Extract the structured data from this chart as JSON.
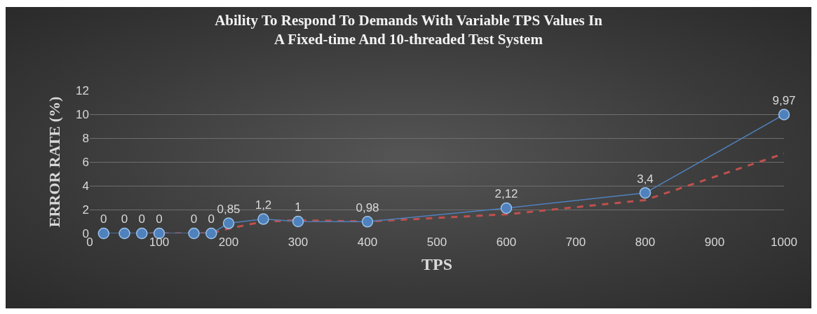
{
  "chart_data": {
    "type": "line",
    "title": "Ability To Respond To Demands With Variable TPS Values In\nA Fixed-time And 10-threaded Test System",
    "xlabel": "TPS",
    "ylabel": "ERROR RATE (%)",
    "x": [
      20,
      50,
      75,
      100,
      150,
      175,
      200,
      250,
      300,
      400,
      600,
      800,
      1000
    ],
    "series": [
      {
        "color": "#4f81bd",
        "marker": "circle",
        "line_style": "solid",
        "values": [
          0,
          0,
          0,
          0,
          0,
          0,
          0.85,
          1.2,
          1,
          0.98,
          2.12,
          3.4,
          9.97
        ],
        "value_labels": [
          "0",
          "0",
          "0",
          "0",
          "0",
          "0",
          "0,85",
          "1,2",
          "1",
          "0,98",
          "2,12",
          "3,4",
          "9,97"
        ]
      },
      {
        "type": "line",
        "color": "#c0504d",
        "marker": "none",
        "line_style": "dashed",
        "x": [
          50,
          75,
          100,
          150,
          175,
          200,
          250,
          300,
          400,
          600,
          800,
          1000
        ],
        "values": [
          0,
          0,
          0,
          0,
          0,
          0.4,
          1.0,
          1.1,
          1.0,
          1.6,
          2.8,
          6.7
        ]
      }
    ],
    "xlim": [
      0,
      1000
    ],
    "xticks": [
      0,
      100,
      200,
      300,
      400,
      500,
      600,
      700,
      800,
      900,
      1000
    ],
    "ylim": [
      0,
      12
    ],
    "yticks": [
      0,
      2,
      4,
      6,
      8,
      10,
      12
    ],
    "grid": "y"
  }
}
